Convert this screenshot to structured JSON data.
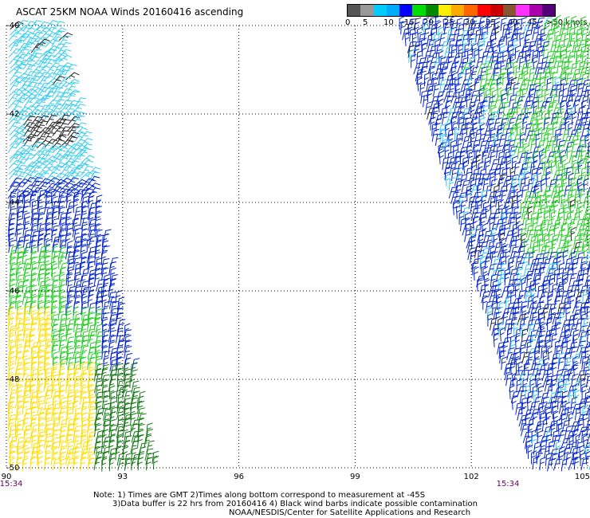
{
  "title": "ASCAT 25KM NOAA Winds 20160416 ascending",
  "legend": {
    "labels": [
      "0",
      "5",
      "10",
      "15",
      "20",
      "25",
      "30",
      "35",
      "40",
      "45",
      ">50 knots"
    ],
    "colors": [
      "#555555",
      "#999999",
      "#00ccff",
      "#00aaff",
      "#0000ff",
      "#00dd00",
      "#008800",
      "#ffee00",
      "#ffaa00",
      "#ff6600",
      "#ff0000",
      "#cc0000",
      "#885533",
      "#ff33ff",
      "#aa00aa",
      "#550077"
    ]
  },
  "map": {
    "x_axis": {
      "labels": [
        "90",
        "93",
        "96",
        "99",
        "102",
        "105"
      ],
      "values": [
        90,
        93,
        96,
        99,
        102,
        105
      ]
    },
    "y_axis": {
      "labels": [
        "-40",
        "-42",
        "-44",
        "-46",
        "-48",
        "-50"
      ],
      "values": [
        -40,
        -42,
        -44,
        -46,
        -48,
        -50
      ]
    },
    "time_labels": [
      "15:34",
      "15:34"
    ],
    "wind_colors": {
      "black": "#222222",
      "light_blue": "#33ccee",
      "blue": "#0022cc",
      "green": "#22cc22",
      "dark_green": "#117711",
      "yellow": "#ffdd00"
    }
  },
  "notes": [
    "Note: 1) Times are GMT 2)Times along bottom correspond to measurement at -45S",
    "3)Data buffer is 22 hrs from 20160416 4) Black wind barbs indicate possible contamination",
    "NOAA/NESDIS/Center for Satellite Applications and Research"
  ]
}
